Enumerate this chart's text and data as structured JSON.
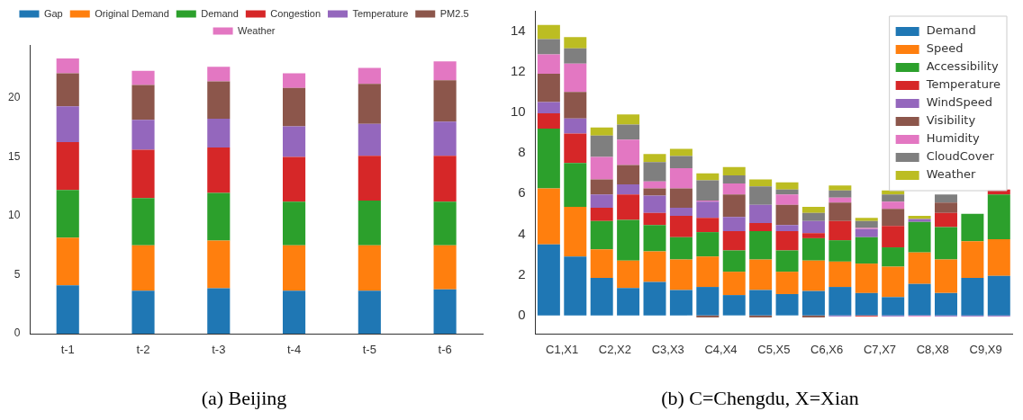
{
  "chart_data": [
    {
      "type": "bar",
      "title": "(a) Beijing",
      "stacked": true,
      "legend": "top",
      "grid": false,
      "categories": [
        "t-1",
        "t-2",
        "t-3",
        "t-4",
        "t-5",
        "t-6"
      ],
      "ylim": [
        0,
        24.5
      ],
      "yticks": [
        0,
        5,
        10,
        15,
        20
      ],
      "series": [
        {
          "name": "Gap",
          "color": "#1f77b4",
          "values": [
            4.1,
            3.65,
            3.85,
            3.65,
            3.65,
            3.75
          ]
        },
        {
          "name": "Original Demand",
          "color": "#ff7f0e",
          "values": [
            4.05,
            3.85,
            4.05,
            3.85,
            3.85,
            3.75
          ]
        },
        {
          "name": "Demand",
          "color": "#2ca02c",
          "values": [
            4.05,
            4.0,
            4.05,
            3.7,
            3.8,
            3.7
          ]
        },
        {
          "name": "Congestion",
          "color": "#d62728",
          "values": [
            4.05,
            4.1,
            3.85,
            3.8,
            3.8,
            3.9
          ]
        },
        {
          "name": "Temperature",
          "color": "#9467bd",
          "values": [
            3.05,
            2.55,
            2.45,
            2.6,
            2.7,
            2.9
          ]
        },
        {
          "name": "PM2.5",
          "color": "#8c564b",
          "values": [
            2.8,
            2.95,
            3.15,
            3.25,
            3.4,
            3.5
          ]
        },
        {
          "name": "Weather",
          "color": "#e377c2",
          "values": [
            1.25,
            1.2,
            1.25,
            1.25,
            1.35,
            1.6
          ]
        }
      ]
    },
    {
      "type": "bar",
      "title": "(b) C=Chengdu, X=Xian",
      "stacked": true,
      "legend": "top right",
      "grid": false,
      "categories": [
        "C1,X1",
        null,
        "C2,X2",
        null,
        "C3,X3",
        null,
        "C4,X4",
        null,
        "C5,X5",
        null,
        "C6,X6",
        null,
        "C7,X7",
        null,
        "C8,X8",
        null,
        "C9,X9",
        null
      ],
      "ylim": [
        -0.9,
        15
      ],
      "yticks": [
        0,
        2,
        4,
        6,
        8,
        10,
        12,
        14
      ],
      "series": [
        {
          "name": "Demand",
          "color": "#1f77b4",
          "values": [
            3.5,
            2.9,
            1.85,
            1.35,
            1.65,
            1.25,
            1.4,
            1.0,
            1.25,
            1.05,
            1.2,
            1.4,
            1.1,
            0.9,
            1.55,
            1.1,
            1.85,
            1.95
          ]
        },
        {
          "name": "Speed",
          "color": "#ff7f0e",
          "values": [
            2.75,
            2.45,
            1.4,
            1.35,
            1.5,
            1.5,
            1.5,
            1.15,
            1.5,
            1.1,
            1.5,
            1.25,
            1.45,
            1.5,
            1.55,
            1.65,
            1.8,
            1.8
          ]
        },
        {
          "name": "Accessibility",
          "color": "#2ca02c",
          "values": [
            2.95,
            2.15,
            1.4,
            2.0,
            1.3,
            1.1,
            1.2,
            1.05,
            1.4,
            1.05,
            1.1,
            1.05,
            1.3,
            0.95,
            1.5,
            1.6,
            1.35,
            2.2
          ]
        },
        {
          "name": "Temperature",
          "color": "#d62728",
          "values": [
            0.75,
            1.45,
            0.65,
            1.25,
            0.6,
            1.05,
            0.7,
            0.95,
            0.4,
            0.95,
            0.25,
            0.95,
            -0.05,
            1.05,
            0,
            0.7,
            0,
            0.25
          ]
        },
        {
          "name": "WindSpeed",
          "color": "#9467bd",
          "values": [
            0.55,
            0.75,
            0.65,
            0.5,
            0.85,
            0.4,
            0.8,
            0.7,
            0.9,
            0.3,
            0.6,
            -0.05,
            0.4,
            -0.05,
            0.15,
            -0.05,
            -0.05,
            -0.05
          ]
        },
        {
          "name": "Visibility",
          "color": "#8c564b",
          "values": [
            1.4,
            1.3,
            0.75,
            0.95,
            0.35,
            0.95,
            -0.1,
            1.1,
            -0.1,
            1.0,
            -0.1,
            0.9,
            0,
            0.85,
            0,
            0.5,
            0,
            0
          ]
        },
        {
          "name": "Humidity",
          "color": "#e377c2",
          "values": [
            0.95,
            1.4,
            1.1,
            1.25,
            0.35,
            1.0,
            0.05,
            0.55,
            0,
            0.5,
            0,
            0.25,
            0.05,
            0.35,
            -0.05,
            0,
            0,
            0
          ]
        },
        {
          "name": "CloudCover",
          "color": "#7f7f7f",
          "values": [
            0.75,
            0.75,
            1.05,
            0.75,
            0.95,
            0.6,
            1.0,
            0.4,
            0.9,
            0.25,
            0.4,
            0.35,
            0.35,
            0.35,
            0,
            0.4,
            0,
            0
          ]
        },
        {
          "name": "Weather",
          "color": "#bcbd22",
          "values": [
            0.7,
            0.55,
            0.4,
            0.5,
            0.4,
            0.35,
            0.35,
            0.4,
            0.35,
            0.35,
            0.3,
            0.25,
            0.15,
            0.2,
            0.15,
            0,
            0,
            0
          ]
        }
      ]
    }
  ]
}
